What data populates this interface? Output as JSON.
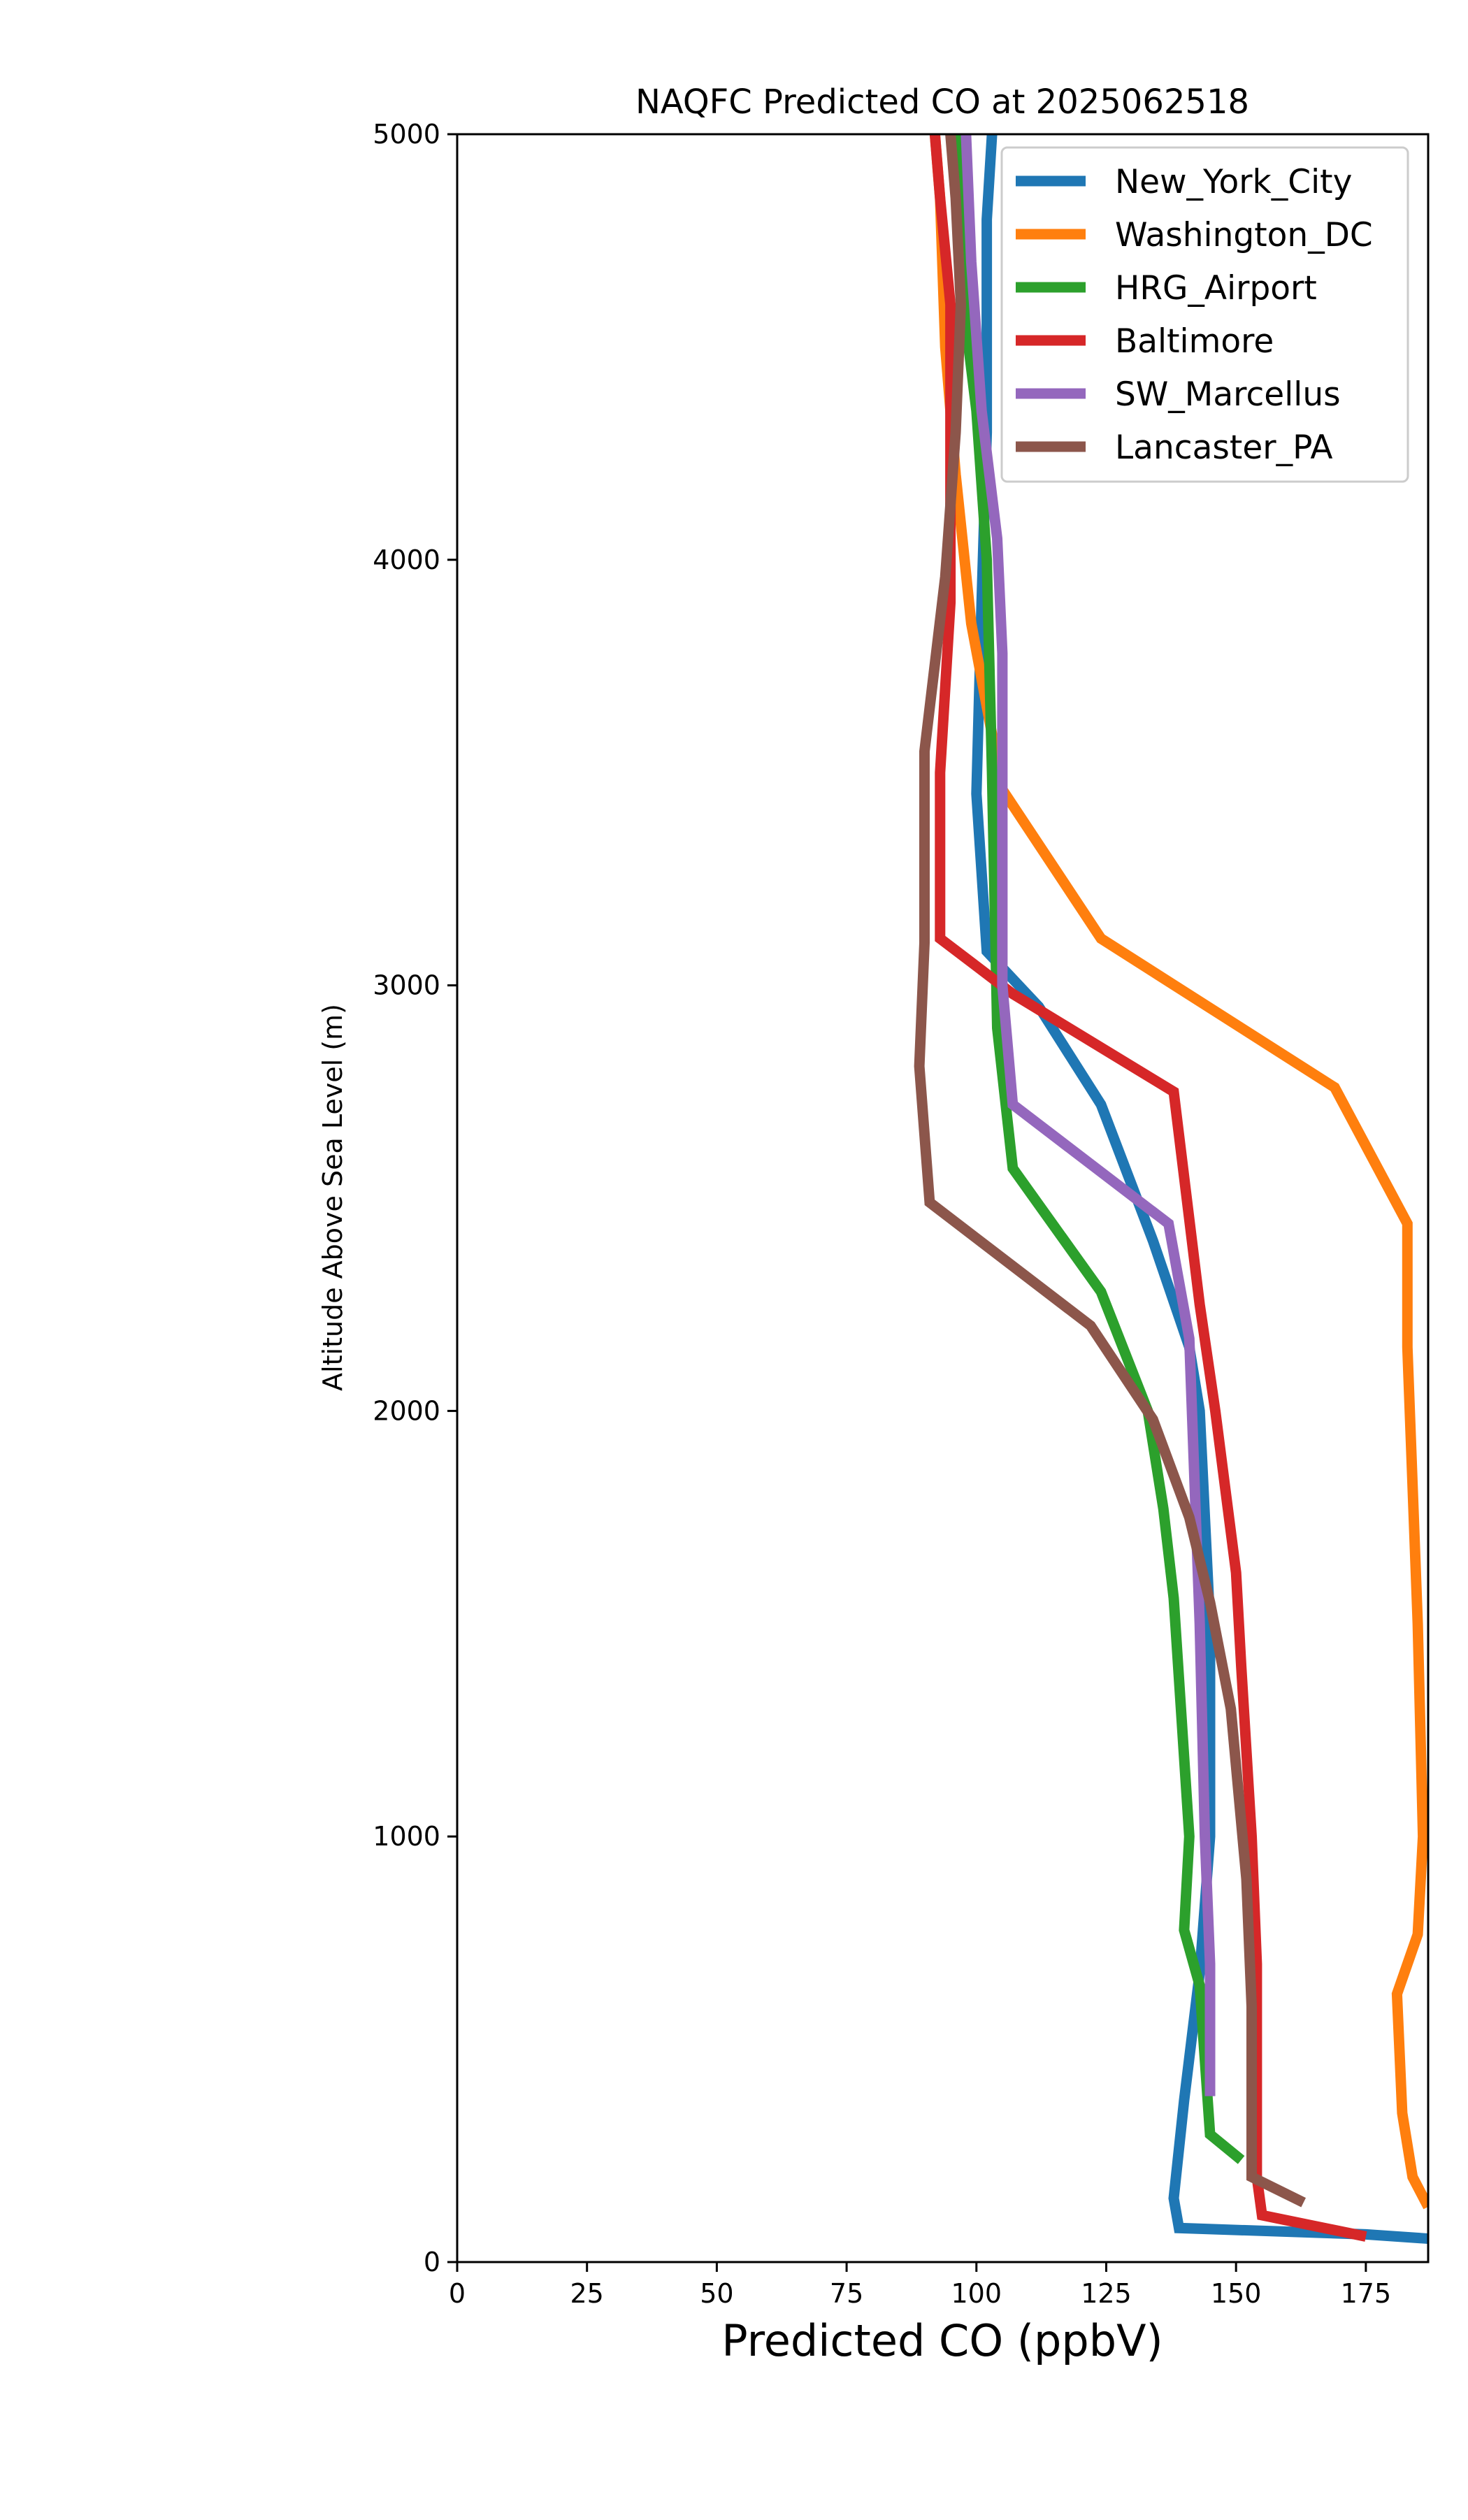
{
  "chart_data": {
    "type": "line",
    "title": "NAQFC Predicted CO at 2025062518",
    "xlabel": "Predicted CO (ppbV)",
    "ylabel": "Altitude Above Sea Level (m)",
    "xlim": [
      0,
      187
    ],
    "ylim": [
      0,
      5000
    ],
    "xticks": [
      0,
      25,
      50,
      75,
      100,
      125,
      150,
      175
    ],
    "yticks": [
      0,
      1000,
      2000,
      3000,
      4000,
      5000
    ],
    "grid": false,
    "legend_position": "top-right",
    "series": [
      {
        "name": "New_York_City",
        "color": "#1f77b4",
        "points": [
          [
            187,
            55
          ],
          [
            175,
            65
          ],
          [
            139,
            80
          ],
          [
            138,
            150
          ],
          [
            140,
            380
          ],
          [
            143,
            680
          ],
          [
            145,
            1000
          ],
          [
            145,
            1500
          ],
          [
            143,
            2000
          ],
          [
            141,
            2150
          ],
          [
            134,
            2400
          ],
          [
            124,
            2720
          ],
          [
            112,
            2950
          ],
          [
            102,
            3080
          ],
          [
            100,
            3450
          ],
          [
            101,
            3900
          ],
          [
            102,
            4300
          ],
          [
            102,
            4800
          ],
          [
            103,
            5000
          ]
        ]
      },
      {
        "name": "Washington_DC",
        "color": "#ff7f0e",
        "points": [
          [
            187,
            130
          ],
          [
            184,
            200
          ],
          [
            182,
            350
          ],
          [
            181,
            630
          ],
          [
            185,
            770
          ],
          [
            186,
            1000
          ],
          [
            185,
            1500
          ],
          [
            183,
            2150
          ],
          [
            183,
            2440
          ],
          [
            169,
            2760
          ],
          [
            124,
            3110
          ],
          [
            105,
            3460
          ],
          [
            99,
            3850
          ],
          [
            96,
            4200
          ],
          [
            94,
            4500
          ],
          [
            93,
            4850
          ],
          [
            92,
            5000
          ]
        ]
      },
      {
        "name": "HRG_Airport",
        "color": "#2ca02c",
        "points": [
          [
            151,
            240
          ],
          [
            145,
            300
          ],
          [
            143,
            650
          ],
          [
            140,
            780
          ],
          [
            141,
            1000
          ],
          [
            138,
            1560
          ],
          [
            136,
            1770
          ],
          [
            133,
            2000
          ],
          [
            124,
            2280
          ],
          [
            107,
            2570
          ],
          [
            104,
            2900
          ],
          [
            103,
            3500
          ],
          [
            102,
            4000
          ],
          [
            100,
            4350
          ],
          [
            98,
            4550
          ],
          [
            97,
            5000
          ]
        ]
      },
      {
        "name": "Baltimore",
        "color": "#d62728",
        "points": [
          [
            175,
            60
          ],
          [
            155,
            110
          ],
          [
            154,
            200
          ],
          [
            154,
            700
          ],
          [
            153,
            1000
          ],
          [
            151,
            1400
          ],
          [
            150,
            1620
          ],
          [
            146,
            2000
          ],
          [
            143,
            2250
          ],
          [
            141,
            2450
          ],
          [
            138,
            2750
          ],
          [
            107,
            2980
          ],
          [
            93,
            3110
          ],
          [
            93,
            3500
          ],
          [
            95,
            3900
          ],
          [
            95,
            4300
          ],
          [
            95,
            4600
          ],
          [
            93,
            4850
          ],
          [
            92,
            5000
          ]
        ]
      },
      {
        "name": "SW_Marcellus",
        "color": "#9467bd",
        "points": [
          [
            145,
            390
          ],
          [
            145,
            700
          ],
          [
            144,
            1000
          ],
          [
            143,
            1500
          ],
          [
            141,
            2170
          ],
          [
            137,
            2440
          ],
          [
            107,
            2720
          ],
          [
            105,
            3000
          ],
          [
            105,
            3350
          ],
          [
            105,
            3780
          ],
          [
            104,
            4050
          ],
          [
            101,
            4350
          ],
          [
            99,
            4700
          ],
          [
            98,
            5000
          ]
        ]
      },
      {
        "name": "Lancaster_PA",
        "color": "#8c564b",
        "points": [
          [
            163,
            140
          ],
          [
            153,
            200
          ],
          [
            153,
            600
          ],
          [
            152,
            900
          ],
          [
            149,
            1300
          ],
          [
            145,
            1550
          ],
          [
            141,
            1750
          ],
          [
            134,
            1980
          ],
          [
            122,
            2200
          ],
          [
            91,
            2490
          ],
          [
            89,
            2810
          ],
          [
            90,
            3100
          ],
          [
            90,
            3550
          ],
          [
            94,
            3960
          ],
          [
            96,
            4300
          ],
          [
            97,
            4600
          ],
          [
            96,
            4850
          ],
          [
            95,
            5000
          ]
        ]
      }
    ]
  }
}
